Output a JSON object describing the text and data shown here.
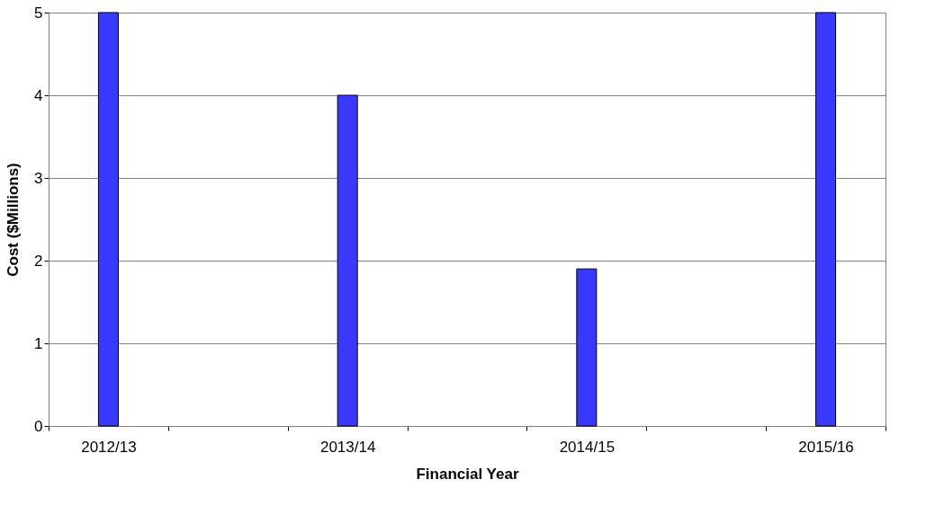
{
  "chart_data": {
    "type": "bar",
    "xlabel": "Financial Year",
    "ylabel": "Cost ($Millions)",
    "categories": [
      "2012/13",
      null,
      "2013/14",
      null,
      "2014/15",
      null,
      "2015/16"
    ],
    "series": [
      {
        "color": "#3838ff",
        "values": [
          5,
          null,
          4,
          null,
          1.9,
          null,
          5
        ]
      }
    ],
    "ylim": [
      0,
      5
    ],
    "yticks": [
      0,
      1,
      2,
      3,
      4,
      5
    ],
    "grid": "y",
    "legend": false
  }
}
